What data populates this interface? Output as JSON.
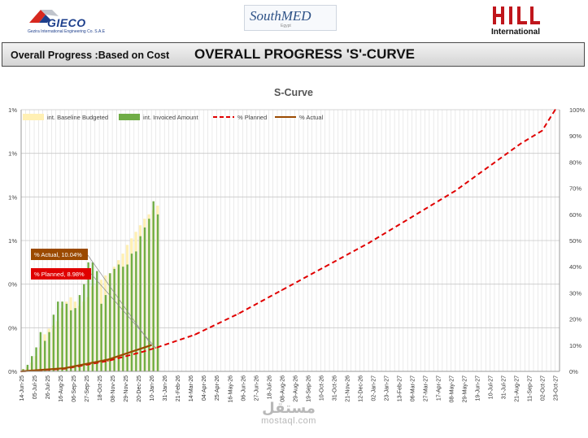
{
  "logos": {
    "left": {
      "name": "GIECO",
      "subtitle": "Gezira International Engineering Co. S.A.E",
      "icon": "gieco-logo"
    },
    "center": {
      "name": "SouthMED",
      "subtitle": "Egypt",
      "icon": "southmed-logo"
    },
    "right": {
      "name": "International",
      "icon": "hill-logo"
    }
  },
  "header": {
    "subtitle": "Overall Progress :Based on Cost",
    "title": "OVERALL PROGRESS 'S'-CURVE"
  },
  "colors": {
    "baseline": "#fff0b4",
    "invoiced": "#70ad47",
    "planned": "#e00000",
    "actual": "#9b4a00",
    "grid": "#dddddd"
  },
  "watermark": {
    "arabic": "مستقل",
    "latin": "mostaql.com"
  },
  "chart_data": {
    "type": "bar+line",
    "title": "S-Curve",
    "legend": [
      "int. Baseline Budgeted",
      "int. Invoiced Amount",
      "% Planned",
      "% Actual"
    ],
    "legend_position": "top",
    "y_left": {
      "tick_labels": [
        "0%",
        "0%",
        "0%",
        "1%",
        "1%",
        "1%",
        "1%"
      ],
      "range": [
        0,
        6
      ]
    },
    "y_right": {
      "tick_labels": [
        "0%",
        "10%",
        "20%",
        "30%",
        "40%",
        "50%",
        "60%",
        "70%",
        "80%",
        "90%",
        "100%"
      ],
      "range": [
        0,
        100
      ]
    },
    "grid": true,
    "x_tick_labels": [
      "14-Jun-25",
      "05-Jul-25",
      "26-Jul-25",
      "16-Aug-25",
      "06-Sep-25",
      "27-Sep-25",
      "18-Oct-25",
      "08-Nov-25",
      "29-Nov-25",
      "20-Dec-25",
      "10-Jan-26",
      "31-Jan-26",
      "21-Feb-26",
      "14-Mar-26",
      "04-Apr-26",
      "25-Apr-26",
      "16-May-26",
      "06-Jun-26",
      "27-Jun-26",
      "18-Jul-26",
      "08-Aug-26",
      "29-Aug-26",
      "19-Sep-26",
      "10-Oct-26",
      "31-Oct-26",
      "21-Nov-26",
      "12-Dec-26",
      "02-Jan-27",
      "23-Jan-27",
      "13-Feb-27",
      "06-Mar-27",
      "27-Mar-27",
      "17-Apr-27",
      "08-May-27",
      "29-May-27",
      "19-Jun-27",
      "10-Jul-27",
      "31-Jul-27",
      "21-Aug-27",
      "11-Sep-27",
      "02-Oct-27",
      "23-Oct-27"
    ],
    "weeks_total": 124,
    "series": [
      {
        "name": "int. Baseline Budgeted",
        "kind": "bar",
        "axis": "left",
        "values": [
          0.05,
          0.1,
          0.2,
          0.35,
          0.55,
          0.85,
          0.98,
          1.05,
          1.15,
          1.45,
          1.6,
          1.7,
          1.6,
          1.5,
          1.6,
          1.7,
          1.95,
          2.0,
          2.1,
          2.2,
          2.25,
          2.4,
          2.55,
          2.7,
          2.9,
          3.05,
          3.2,
          3.35,
          3.5,
          3.6,
          3.7,
          3.8
        ]
      },
      {
        "name": "int. Invoiced Amount",
        "kind": "bar",
        "axis": "left",
        "values": [
          0.05,
          0.15,
          0.35,
          0.55,
          0.9,
          0.7,
          0.9,
          1.3,
          1.6,
          1.6,
          1.55,
          1.4,
          1.45,
          1.75,
          2.0,
          2.5,
          2.5,
          2.3,
          1.55,
          1.75,
          2.25,
          2.35,
          2.45,
          2.4,
          2.45,
          2.7,
          2.75,
          3.1,
          3.3,
          3.5,
          3.9,
          3.6
        ]
      },
      {
        "name": "% Planned",
        "kind": "line",
        "axis": "right",
        "x": [
          0,
          10,
          20,
          28,
          31,
          40,
          50,
          60,
          70,
          80,
          90,
          100,
          110,
          115,
          120,
          123
        ],
        "values": [
          0,
          1,
          4,
          7.5,
          8.98,
          14,
          22,
          31,
          40,
          49,
          59,
          69,
          81,
          87,
          92,
          100
        ]
      },
      {
        "name": "% Actual",
        "kind": "line",
        "axis": "right",
        "x": [
          0,
          10,
          20,
          30
        ],
        "values": [
          0,
          1.2,
          4.5,
          10.04
        ]
      }
    ],
    "annotations": [
      {
        "label": "% Actual, 10.04%",
        "series": "% Actual"
      },
      {
        "label": "% Planned, 8.98%",
        "series": "% Planned"
      }
    ]
  }
}
